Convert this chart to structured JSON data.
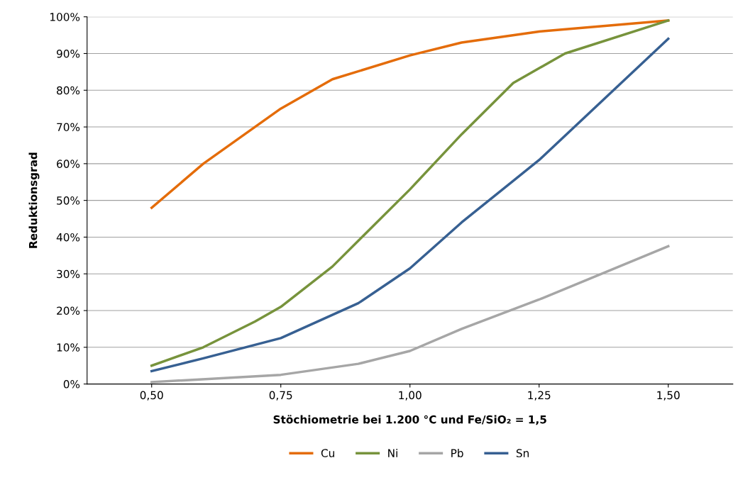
{
  "chart_data": {
    "type": "line",
    "xlabel": "Stöchiometrie bei 1.200 °C und Fe/SiO₂ = 1,5",
    "ylabel": "Reduktionsgrad",
    "xlim": [
      0.375,
      1.625
    ],
    "xticks": [
      {
        "value": 0.5,
        "label": "0,50"
      },
      {
        "value": 0.75,
        "label": "0,75"
      },
      {
        "value": 1.0,
        "label": "1,00"
      },
      {
        "value": 1.25,
        "label": "1,25"
      },
      {
        "value": 1.5,
        "label": "1,50"
      }
    ],
    "ylim": [
      0,
      100
    ],
    "yticks": [
      {
        "value": 0,
        "label": "0%"
      },
      {
        "value": 10,
        "label": "10%"
      },
      {
        "value": 20,
        "label": "20%"
      },
      {
        "value": 30,
        "label": "30%"
      },
      {
        "value": 40,
        "label": "40%"
      },
      {
        "value": 50,
        "label": "50%"
      },
      {
        "value": 60,
        "label": "60%"
      },
      {
        "value": 70,
        "label": "70%"
      },
      {
        "value": 80,
        "label": "80%"
      },
      {
        "value": 90,
        "label": "90%"
      },
      {
        "value": 100,
        "label": "100%"
      }
    ],
    "grid": "y",
    "legend": "bottom",
    "marker": "none",
    "line_style": "solid",
    "series": [
      {
        "name": "Cu",
        "color": "#e46c0a",
        "x": [
          0.5,
          0.6,
          0.75,
          0.85,
          1.0,
          1.1,
          1.25,
          1.5
        ],
        "values": [
          48,
          60,
          75,
          83,
          89.5,
          93,
          96,
          99
        ]
      },
      {
        "name": "Ni",
        "color": "#77933c",
        "x": [
          0.5,
          0.6,
          0.7,
          0.75,
          0.85,
          1.0,
          1.1,
          1.2,
          1.3,
          1.5
        ],
        "values": [
          5,
          10,
          17,
          21,
          32,
          53,
          68,
          82,
          90,
          99
        ]
      },
      {
        "name": "Pb",
        "color": "#a6a6a6",
        "x": [
          0.5,
          0.75,
          0.9,
          1.0,
          1.1,
          1.25,
          1.5
        ],
        "values": [
          0.5,
          2.5,
          5.5,
          9,
          15,
          23,
          37.5
        ]
      },
      {
        "name": "Sn",
        "color": "#376092",
        "x": [
          0.5,
          0.6,
          0.75,
          0.9,
          1.0,
          1.1,
          1.25,
          1.5
        ],
        "values": [
          3.5,
          7,
          12.5,
          22,
          31.5,
          44,
          61,
          94
        ]
      }
    ]
  }
}
